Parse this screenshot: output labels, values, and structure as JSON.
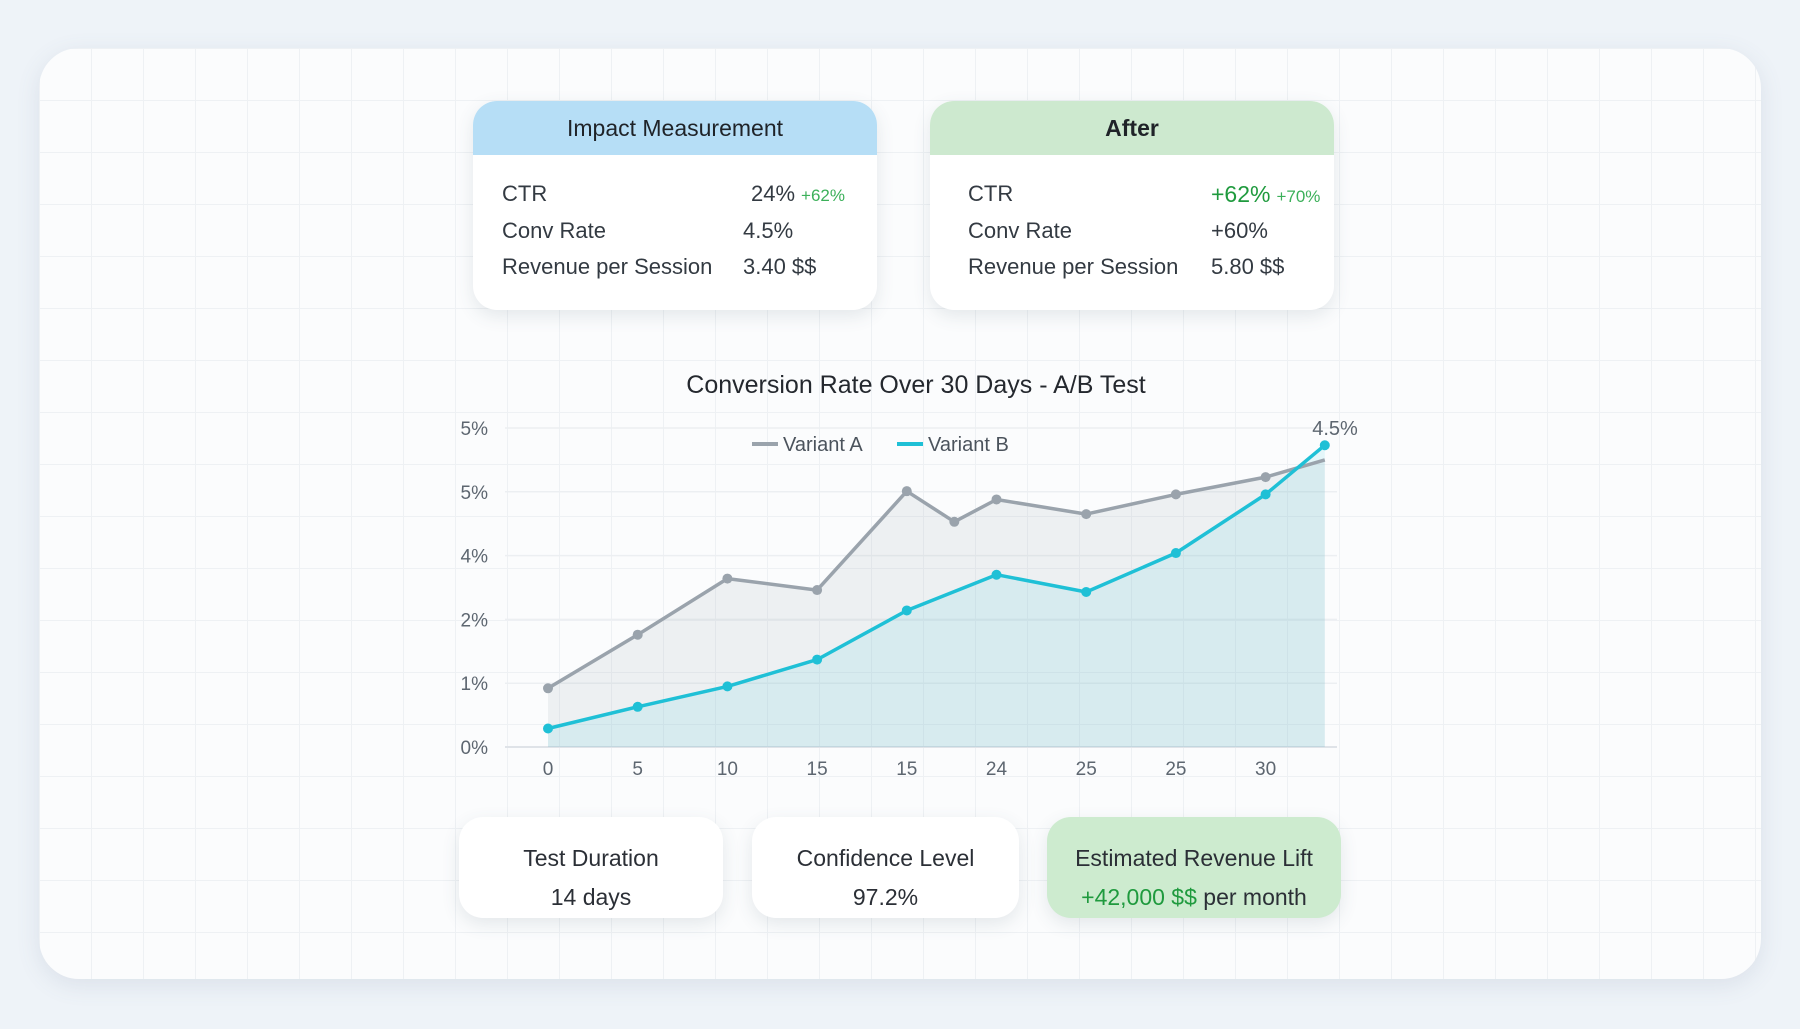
{
  "before_card": {
    "title": "Impact Measurement",
    "rows": [
      {
        "label": "CTR",
        "value": "24%",
        "delta": "+62%"
      },
      {
        "label": "Conv Rate",
        "value": "4.5%"
      },
      {
        "label": "Revenue per Session",
        "value": "3.40 $$"
      }
    ]
  },
  "after_card": {
    "title": "After",
    "rows": [
      {
        "label": "CTR",
        "value": "+62%",
        "delta": "+70%"
      },
      {
        "label": "Conv Rate",
        "value": "+60%"
      },
      {
        "label": "Revenue per Session",
        "value": "5.80 $$"
      }
    ]
  },
  "chart_data": {
    "type": "line",
    "title": "Conversion Rate Over 30 Days - A/B Test",
    "xlabel": "",
    "ylabel": "",
    "x_tick_labels": [
      "0",
      "5",
      "10",
      "15",
      "15",
      "24",
      "25",
      "25",
      "30"
    ],
    "y_tick_labels": [
      "0%",
      "1%",
      "2%",
      "4%",
      "5%",
      "5%"
    ],
    "grid": true,
    "legend_position": "top-center",
    "end_label": "4.5%",
    "series": [
      {
        "name": "Variant A",
        "color": "#9aa3ac",
        "x": [
          0,
          1,
          2,
          3,
          4,
          4.53,
          5,
          6,
          7,
          8,
          8.66
        ],
        "y": [
          0.92,
          1.76,
          2.64,
          2.46,
          4.01,
          3.53,
          3.88,
          3.65,
          3.96,
          4.23,
          4.5
        ]
      },
      {
        "name": "Variant B",
        "color": "#1fc0d6",
        "x": [
          0,
          1,
          2,
          3,
          4,
          5,
          6,
          7,
          8,
          8.66
        ],
        "y": [
          0.29,
          0.63,
          0.95,
          1.37,
          2.14,
          2.7,
          2.43,
          3.04,
          3.96,
          4.73
        ]
      }
    ]
  },
  "stats": [
    {
      "label": "Test Duration",
      "value": "14 days"
    },
    {
      "label": "Confidence Level",
      "value": "97.2%"
    },
    {
      "label": "Estimated Revenue Lift",
      "value": "+42,000 $$",
      "suffix": "per month"
    }
  ],
  "colors": {
    "before_header": "#b6def6",
    "after_header": "#cde9cf",
    "lift_card": "#cdebcf",
    "positive": "#1f9a3e"
  }
}
